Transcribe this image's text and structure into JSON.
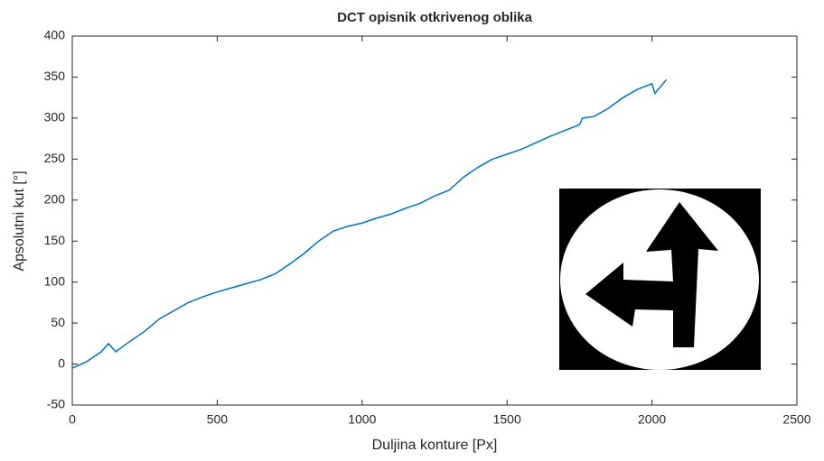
{
  "chart_data": {
    "type": "line",
    "title": "DCT opisnik otkrivenog oblika",
    "xlabel": "Duljina konture [Px]",
    "ylabel": "Apsolutni kut [°]",
    "x": [
      0,
      50,
      100,
      125,
      150,
      200,
      250,
      300,
      350,
      400,
      450,
      500,
      550,
      600,
      650,
      700,
      750,
      800,
      850,
      900,
      950,
      1000,
      1050,
      1100,
      1150,
      1200,
      1250,
      1300,
      1350,
      1400,
      1450,
      1500,
      1550,
      1600,
      1650,
      1700,
      1750,
      1760,
      1800,
      1850,
      1900,
      1950,
      2000,
      2010,
      2050
    ],
    "series": [
      {
        "name": "DCT",
        "color": "#0072bd",
        "values": [
          -5,
          3,
          15,
          25,
          15,
          28,
          40,
          55,
          65,
          75,
          82,
          88,
          93,
          98,
          103,
          110,
          122,
          135,
          150,
          162,
          168,
          172,
          178,
          183,
          190,
          196,
          205,
          212,
          228,
          240,
          250,
          256,
          262,
          270,
          278,
          285,
          292,
          300,
          302,
          312,
          325,
          335,
          342,
          330,
          347
        ]
      }
    ],
    "xlim": [
      0,
      2500
    ],
    "xticks": [
      0,
      500,
      1000,
      1500,
      2000,
      2500
    ],
    "ylim": [
      -50,
      400
    ],
    "yticks": [
      -50,
      0,
      50,
      100,
      150,
      200,
      250,
      300,
      350,
      400
    ]
  }
}
